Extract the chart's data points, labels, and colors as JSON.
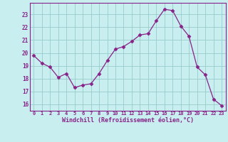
{
  "x": [
    0,
    1,
    2,
    3,
    4,
    5,
    6,
    7,
    8,
    9,
    10,
    11,
    12,
    13,
    14,
    15,
    16,
    17,
    18,
    19,
    20,
    21,
    22,
    23
  ],
  "y": [
    19.8,
    19.2,
    18.9,
    18.1,
    18.4,
    17.3,
    17.5,
    17.6,
    18.4,
    19.4,
    20.3,
    20.5,
    20.9,
    21.4,
    21.5,
    22.5,
    23.4,
    23.3,
    22.1,
    21.3,
    18.9,
    18.3,
    16.4,
    15.9
  ],
  "x_ticks": [
    0,
    1,
    2,
    3,
    4,
    5,
    6,
    7,
    8,
    9,
    10,
    11,
    12,
    13,
    14,
    15,
    16,
    17,
    18,
    19,
    20,
    21,
    22,
    23
  ],
  "x_tick_labels": [
    "0",
    "1",
    "2",
    "3",
    "4",
    "5",
    "6",
    "7",
    "8",
    "9",
    "10",
    "11",
    "12",
    "13",
    "14",
    "15",
    "16",
    "17",
    "18",
    "19",
    "20",
    "21",
    "22",
    "23"
  ],
  "y_ticks": [
    16,
    17,
    18,
    19,
    20,
    21,
    22,
    23
  ],
  "ylim": [
    15.5,
    23.9
  ],
  "xlim": [
    -0.5,
    23.5
  ],
  "line_color": "#882288",
  "marker": "D",
  "marker_size": 2.5,
  "bg_color": "#c8eef0",
  "grid_color": "#99cccc",
  "xlabel": "Windchill (Refroidissement éolien,°C)",
  "xlabel_color": "#882288",
  "tick_color": "#882288",
  "spine_color": "#882288"
}
